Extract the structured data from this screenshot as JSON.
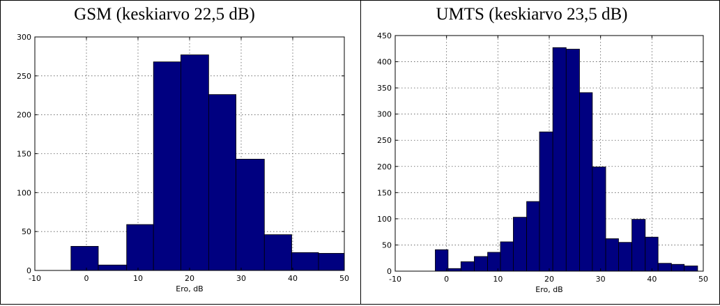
{
  "chart_data": [
    {
      "type": "bar",
      "title": "GSM (keskiarvo  22,5  dB)",
      "xlabel": "Ero, dB",
      "ylabel": "",
      "xlim": [
        -10,
        50
      ],
      "ylim": [
        0,
        300
      ],
      "xticks": [
        "-10",
        "0",
        "10",
        "20",
        "30",
        "40",
        "50"
      ],
      "yticks": [
        "0",
        "50",
        "100",
        "150",
        "200",
        "250",
        "300"
      ],
      "grid": true,
      "bar_color": "#000080",
      "bins": [
        {
          "x0": -3.0,
          "x1": 2.3,
          "value": 31
        },
        {
          "x0": 2.3,
          "x1": 7.8,
          "value": 7
        },
        {
          "x0": 7.8,
          "x1": 13.0,
          "value": 59
        },
        {
          "x0": 13.0,
          "x1": 18.3,
          "value": 268
        },
        {
          "x0": 18.3,
          "x1": 23.7,
          "value": 277
        },
        {
          "x0": 23.7,
          "x1": 29.0,
          "value": 226
        },
        {
          "x0": 29.0,
          "x1": 34.5,
          "value": 143
        },
        {
          "x0": 34.5,
          "x1": 39.8,
          "value": 46
        },
        {
          "x0": 39.8,
          "x1": 45.0,
          "value": 23
        },
        {
          "x0": 45.0,
          "x1": 50.0,
          "value": 22
        }
      ]
    },
    {
      "type": "bar",
      "title": "UMTS (keskiarvo  23,5  dB)",
      "xlabel": "Ero, dB",
      "ylabel": "",
      "xlim": [
        -10,
        50
      ],
      "ylim": [
        0,
        450
      ],
      "xticks": [
        "-10",
        "0",
        "10",
        "20",
        "30",
        "40",
        "50"
      ],
      "yticks": [
        "0",
        "50",
        "100",
        "150",
        "200",
        "250",
        "300",
        "350",
        "400",
        "450"
      ],
      "grid": true,
      "bar_color": "#000080",
      "bins": [
        {
          "x0": -2.2,
          "x1": 0.3,
          "value": 41
        },
        {
          "x0": 0.3,
          "x1": 2.8,
          "value": 5
        },
        {
          "x0": 2.8,
          "x1": 5.4,
          "value": 18
        },
        {
          "x0": 5.4,
          "x1": 8.0,
          "value": 28
        },
        {
          "x0": 8.0,
          "x1": 10.5,
          "value": 36
        },
        {
          "x0": 10.5,
          "x1": 13.0,
          "value": 56
        },
        {
          "x0": 13.0,
          "x1": 15.6,
          "value": 103
        },
        {
          "x0": 15.6,
          "x1": 18.1,
          "value": 133
        },
        {
          "x0": 18.1,
          "x1": 20.7,
          "value": 266
        },
        {
          "x0": 20.7,
          "x1": 23.3,
          "value": 427
        },
        {
          "x0": 23.3,
          "x1": 25.9,
          "value": 424
        },
        {
          "x0": 25.9,
          "x1": 28.4,
          "value": 341
        },
        {
          "x0": 28.4,
          "x1": 31.0,
          "value": 199
        },
        {
          "x0": 31.0,
          "x1": 33.5,
          "value": 62
        },
        {
          "x0": 33.5,
          "x1": 36.1,
          "value": 55
        },
        {
          "x0": 36.1,
          "x1": 38.7,
          "value": 99
        },
        {
          "x0": 38.7,
          "x1": 41.2,
          "value": 65
        },
        {
          "x0": 41.2,
          "x1": 43.8,
          "value": 15
        },
        {
          "x0": 43.8,
          "x1": 46.3,
          "value": 13
        },
        {
          "x0": 46.3,
          "x1": 48.9,
          "value": 10
        }
      ]
    }
  ]
}
